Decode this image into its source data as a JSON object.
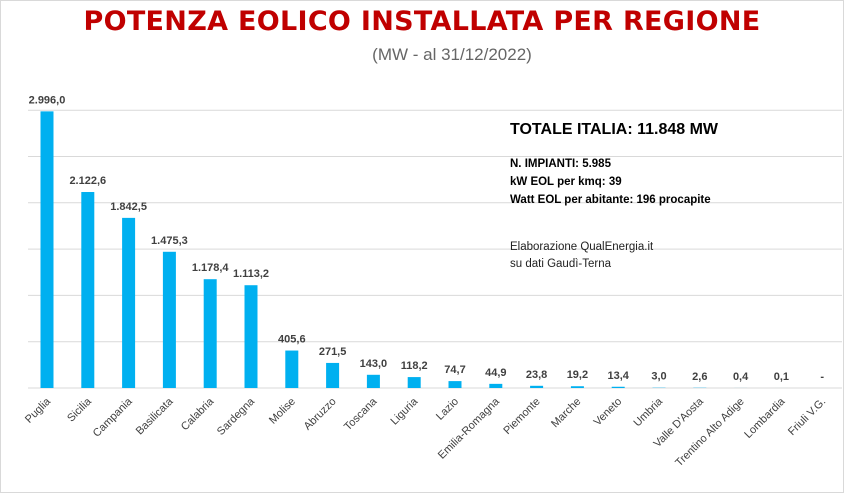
{
  "header": {
    "title": "POTENZA EOLICO INSTALLATA PER REGIONE",
    "subtitle": "(MW - al 31/12/2022)"
  },
  "info": {
    "total": "TOTALE ITALIA:  11.848 MW",
    "impianti": "N. IMPIANTI:  5.985",
    "kw_kmq": "kW EOL per kmq: 39",
    "watt_abitante": "Watt EOL per abitante: 196 procapite",
    "credit_line1": "Elaborazione QualEnergia.it",
    "credit_line2": "su dati Gaudì-Terna"
  },
  "chart_data": {
    "type": "bar",
    "title": "POTENZA EOLICO INSTALLATA PER REGIONE",
    "subtitle": "(MW - al 31/12/2022)",
    "xlabel": "",
    "ylabel": "",
    "ylim": [
      0,
      3000
    ],
    "grid": true,
    "bar_color": "#00b0f0",
    "categories": [
      "Puglia",
      "Sicilia",
      "Campania",
      "Basilicata",
      "Calabria",
      "Sardegna",
      "Molise",
      "Abruzzo",
      "Toscana",
      "Liguria",
      "Lazio",
      "Emilia-Romagna",
      "Piemonte",
      "Marche",
      "Veneto",
      "Umbria",
      "Valle D'Aosta",
      "Trentino Alto Adige",
      "Lombardia",
      "Friuli V.G."
    ],
    "values": [
      2996.0,
      2122.6,
      1842.5,
      1475.3,
      1178.4,
      1113.2,
      405.6,
      271.5,
      143.0,
      118.2,
      74.7,
      44.9,
      23.8,
      19.2,
      13.4,
      3.0,
      2.6,
      0.4,
      0.1,
      0
    ],
    "data_labels": [
      "2.996,0",
      "2.122,6",
      "1.842,5",
      "1.475,3",
      "1.178,4",
      "1.113,2",
      "405,6",
      "271,5",
      "143,0",
      "118,2",
      "74,7",
      "44,9",
      "23,8",
      "19,2",
      "13,4",
      "3,0",
      "2,6",
      "0,4",
      "0,1",
      "-"
    ]
  }
}
